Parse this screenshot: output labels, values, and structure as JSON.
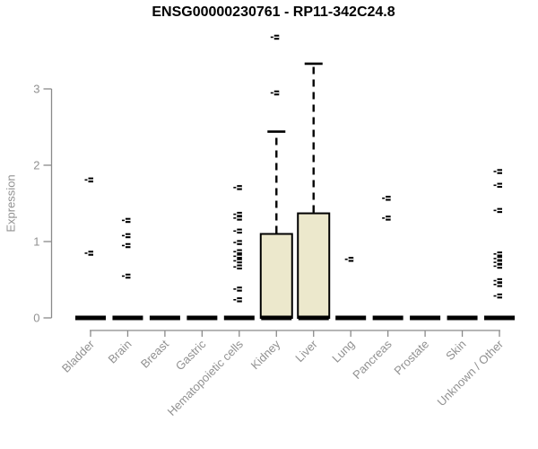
{
  "chart_data": {
    "type": "boxplot",
    "title": "ENSG00000230761 - RP11-342C24.8",
    "ylabel": "Expression",
    "yticks": [
      0,
      1,
      2,
      3
    ],
    "ylim": [
      0,
      3.8
    ],
    "grid": false,
    "box_fill": "#ECE8CC",
    "box_stroke": "#000000",
    "axis_color": "#8a8a8a",
    "tick_label_color": "#919191",
    "categories": [
      "Bladder",
      "Brain",
      "Breast",
      "Gastric",
      "Hematopoietic cells",
      "Kidney",
      "Liver",
      "Lung",
      "Pancreas",
      "Prostate",
      "Skin",
      "Unknown / Other"
    ],
    "boxes": [
      {
        "category": "Bladder",
        "median": 0,
        "q1": 0,
        "q3": 0,
        "whisker_low": 0,
        "whisker_high": 0,
        "outliers": [
          1.81,
          0.85
        ]
      },
      {
        "category": "Brain",
        "median": 0,
        "q1": 0,
        "q3": 0,
        "whisker_low": 0,
        "whisker_high": 0,
        "outliers": [
          1.28,
          1.08,
          0.95,
          0.55
        ]
      },
      {
        "category": "Breast",
        "median": 0,
        "q1": 0,
        "q3": 0,
        "whisker_low": 0,
        "whisker_high": 0,
        "outliers": []
      },
      {
        "category": "Gastric",
        "median": 0,
        "q1": 0,
        "q3": 0,
        "whisker_low": 0,
        "whisker_high": 0,
        "outliers": []
      },
      {
        "category": "Hematopoietic cells",
        "median": 0,
        "q1": 0,
        "q3": 0,
        "whisker_low": 0,
        "whisker_high": 0,
        "outliers": [
          1.71,
          1.36,
          1.31,
          1.14,
          0.99,
          0.87,
          0.81,
          0.75,
          0.67,
          0.38,
          0.24
        ]
      },
      {
        "category": "Kidney",
        "median": 0,
        "q1": 0,
        "q3": 1.1,
        "whisker_low": 0,
        "whisker_high": 2.44,
        "outliers": [
          3.68,
          2.95
        ]
      },
      {
        "category": "Liver",
        "median": 0,
        "q1": 0,
        "q3": 1.37,
        "whisker_low": 0,
        "whisker_high": 3.33,
        "outliers": []
      },
      {
        "category": "Lung",
        "median": 0,
        "q1": 0,
        "q3": 0,
        "whisker_low": 0,
        "whisker_high": 0,
        "outliers": [
          0.77
        ]
      },
      {
        "category": "Pancreas",
        "median": 0,
        "q1": 0,
        "q3": 0,
        "whisker_low": 0,
        "whisker_high": 0,
        "outliers": [
          1.57,
          1.31
        ]
      },
      {
        "category": "Prostate",
        "median": 0,
        "q1": 0,
        "q3": 0,
        "whisker_low": 0,
        "whisker_high": 0,
        "outliers": []
      },
      {
        "category": "Skin",
        "median": 0,
        "q1": 0,
        "q3": 0,
        "whisker_low": 0,
        "whisker_high": 0,
        "outliers": []
      },
      {
        "category": "Unknown / Other",
        "median": 0,
        "q1": 0,
        "q3": 0,
        "whisker_low": 0,
        "whisker_high": 0,
        "outliers": [
          1.92,
          1.74,
          1.41,
          0.84,
          0.78,
          0.73,
          0.68,
          0.49,
          0.44,
          0.29
        ]
      }
    ]
  }
}
